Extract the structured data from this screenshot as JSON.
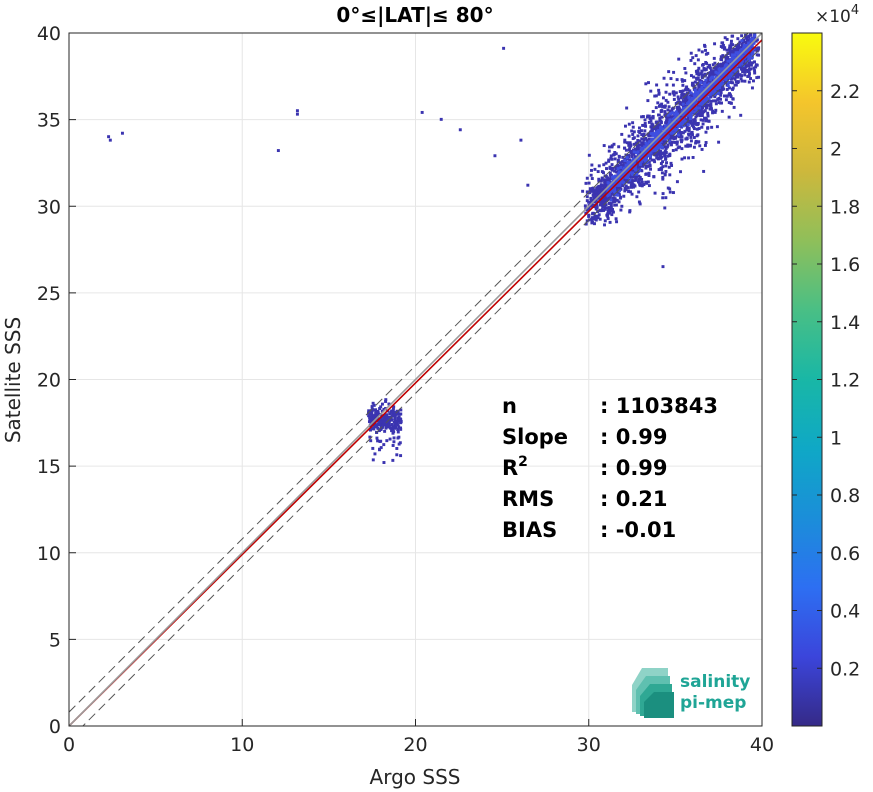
{
  "chart_data": {
    "type": "heatmap",
    "title": "0°≤|LAT|≤ 80°",
    "xlabel": "Argo SSS",
    "ylabel": "Satellite SSS",
    "xlim": [
      0,
      40
    ],
    "ylim": [
      0,
      40
    ],
    "xticks": [
      "0",
      "10",
      "20",
      "30",
      "40"
    ],
    "yticks": [
      "0",
      "5",
      "10",
      "15",
      "20",
      "25",
      "30",
      "35",
      "40"
    ],
    "grid": true,
    "colorbar": {
      "range": [
        0,
        24000
      ],
      "multiplier": "×10",
      "exponent": "4",
      "ticks": [
        "0.2",
        "0.4",
        "0.6",
        "0.8",
        "1",
        "1.2",
        "1.4",
        "1.6",
        "1.8",
        "2",
        "2.2"
      ],
      "tick_values": [
        0.2,
        0.4,
        0.6,
        0.8,
        1.0,
        1.2,
        1.4,
        1.6,
        1.8,
        2.0,
        2.2
      ],
      "colormap": "parula"
    },
    "density_regions": [
      {
        "x": [
          30,
          38
        ],
        "y": [
          30,
          39
        ],
        "note": "main open-ocean cluster"
      },
      {
        "x": [
          17,
          19
        ],
        "y": [
          15,
          19
        ],
        "note": "low-salinity cluster"
      }
    ],
    "lines": [
      {
        "label": "fit",
        "slope": 0.99,
        "intercept": 0.0,
        "color": "#c00000"
      },
      {
        "label": "1:1",
        "slope": 1.0,
        "intercept": 0.0,
        "color": "#9b9b9b"
      },
      {
        "label": "upper",
        "slope": 1.0,
        "intercept": 0.8,
        "color": "#555555",
        "dash": true
      },
      {
        "label": "lower",
        "slope": 1.0,
        "intercept": -0.8,
        "color": "#555555",
        "dash": true
      }
    ],
    "stats": [
      {
        "label": "n",
        "value": ": 1103843"
      },
      {
        "label": "Slope",
        "value": ": 0.99"
      },
      {
        "label": "R",
        "sup": "2",
        "value": ": 0.99"
      },
      {
        "label": "RMS",
        "value": ": 0.21"
      },
      {
        "label": "BIAS",
        "value": ": -0.01"
      }
    ]
  },
  "logo": {
    "line1": "salinity",
    "line2": "pi-mep",
    "color": "#1fa596"
  }
}
